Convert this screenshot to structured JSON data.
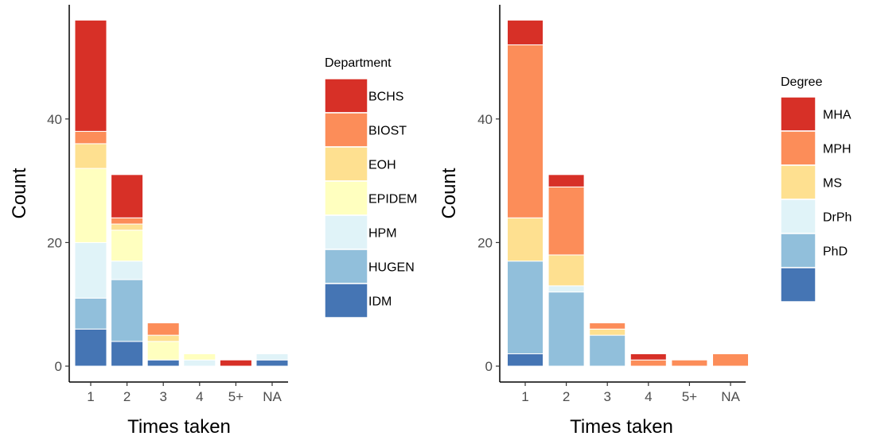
{
  "colors": {
    "red": "#D73027",
    "orange": "#FC8D59",
    "gold": "#FEE090",
    "lightyellow": "#FFFFBF",
    "lightblue": "#E0F3F8",
    "skyblue": "#91BFDB",
    "blue": "#4575B4"
  },
  "chart_data": [
    {
      "type": "bar",
      "stacked": true,
      "categories": [
        "1",
        "2",
        "3",
        "4",
        "5+",
        "NA"
      ],
      "xlabel": "Times taken",
      "ylabel": "Count",
      "ylim": [
        0,
        57
      ],
      "yticks": [
        0,
        20,
        40
      ],
      "legend_title": "Department",
      "legend_position": "right",
      "series": [
        {
          "name": "IDM",
          "color": "#4575B4",
          "values": [
            6,
            4,
            1,
            0,
            0,
            1
          ]
        },
        {
          "name": "HUGEN",
          "color": "#91BFDB",
          "values": [
            5,
            10,
            0,
            0,
            0,
            0
          ]
        },
        {
          "name": "HPM",
          "color": "#E0F3F8",
          "values": [
            9,
            3,
            0,
            1,
            0,
            1
          ]
        },
        {
          "name": "EPIDEM",
          "color": "#FFFFBF",
          "values": [
            12,
            5,
            3,
            1,
            0,
            0
          ]
        },
        {
          "name": "EOH",
          "color": "#FEE090",
          "values": [
            4,
            1,
            1,
            0,
            0,
            0
          ]
        },
        {
          "name": "BIOST",
          "color": "#FC8D59",
          "values": [
            2,
            1,
            2,
            0,
            0,
            0
          ]
        },
        {
          "name": "BCHS",
          "color": "#D73027",
          "values": [
            18,
            7,
            0,
            0,
            1,
            0
          ]
        }
      ]
    },
    {
      "type": "bar",
      "stacked": true,
      "categories": [
        "1",
        "2",
        "3",
        "4",
        "5+",
        "NA"
      ],
      "xlabel": "Times taken",
      "ylabel": "Count",
      "ylim": [
        0,
        57
      ],
      "yticks": [
        0,
        20,
        40
      ],
      "legend_title": "Degree",
      "legend_position": "right",
      "series": [
        {
          "name": "",
          "color": "#4575B4",
          "values": [
            2,
            0,
            0,
            0,
            0,
            0
          ]
        },
        {
          "name": "PhD",
          "color": "#91BFDB",
          "values": [
            15,
            12,
            5,
            0,
            0,
            0
          ]
        },
        {
          "name": "DrPh",
          "color": "#E0F3F8",
          "values": [
            0,
            1,
            0,
            0,
            0,
            0
          ]
        },
        {
          "name": "MS",
          "color": "#FEE090",
          "values": [
            7,
            5,
            1,
            0,
            0,
            0
          ]
        },
        {
          "name": "MPH",
          "color": "#FC8D59",
          "values": [
            28,
            11,
            1,
            1,
            1,
            2
          ]
        },
        {
          "name": "MHA",
          "color": "#D73027",
          "values": [
            4,
            2,
            0,
            1,
            0,
            0
          ]
        }
      ]
    }
  ]
}
